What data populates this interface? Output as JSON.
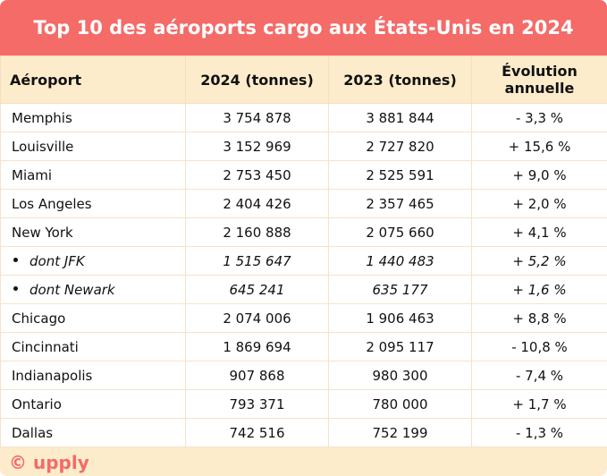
{
  "header": {
    "title": "Top 10 des aéroports cargo aux États-Unis en 2024"
  },
  "table": {
    "columns": [
      "Aéroport",
      "2024 (tonnes)",
      "2023 (tonnes)",
      "Évolution annuelle"
    ],
    "rows": [
      {
        "cells": [
          "Memphis",
          "3 754 878",
          "3 881 844",
          "- 3,3 %"
        ]
      },
      {
        "cells": [
          "Louisville",
          "3 152 969",
          "2 727 820",
          "+ 15,6 %"
        ]
      },
      {
        "cells": [
          "Miami",
          "2 753 450",
          "2 525 591",
          "+ 9,0 %"
        ]
      },
      {
        "cells": [
          "Los Angeles",
          "2 404 426",
          "2 357 465",
          "+ 2,0 %"
        ]
      },
      {
        "cells": [
          "New York",
          "2 160 888",
          "2 075 660",
          "+ 4,1 %"
        ]
      },
      {
        "cells": [
          "dont JFK",
          "1 515 647",
          "1 440 483",
          "+ 5,2 %"
        ],
        "italic": true
      },
      {
        "cells": [
          "dont Newark",
          "645 241",
          "635 177",
          "+ 1,6 %"
        ],
        "italic": true
      },
      {
        "cells": [
          "Chicago",
          "2 074 006",
          "1 906 463",
          "+ 8,8 %"
        ]
      },
      {
        "cells": [
          "Cincinnati",
          "1 869 694",
          "2 095 117",
          "- 10,8 %"
        ]
      },
      {
        "cells": [
          "Indianapolis",
          "907 868",
          "980 300",
          "- 7,4 %"
        ]
      },
      {
        "cells": [
          "Ontario",
          "793 371",
          "780 000",
          "+ 1,7 %"
        ]
      },
      {
        "cells": [
          "Dallas",
          "742 516",
          "752 199",
          "- 1,3 %"
        ]
      }
    ]
  },
  "footer": {
    "logo": "© upply"
  }
}
